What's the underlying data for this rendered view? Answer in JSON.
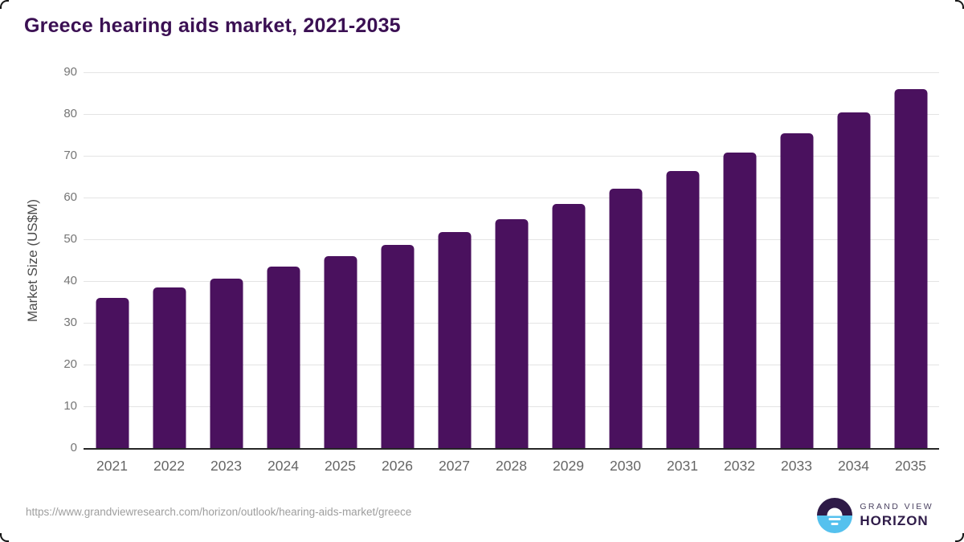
{
  "title": "Greece hearing aids market, 2021-2035",
  "chart_data": {
    "type": "bar",
    "title": "Greece hearing aids market, 2021-2035",
    "categories": [
      "2021",
      "2022",
      "2023",
      "2024",
      "2025",
      "2026",
      "2027",
      "2028",
      "2029",
      "2030",
      "2031",
      "2032",
      "2033",
      "2034",
      "2035"
    ],
    "values": [
      36.0,
      38.4,
      40.5,
      43.4,
      45.9,
      48.6,
      51.7,
      54.9,
      58.4,
      62.2,
      66.3,
      70.7,
      75.4,
      80.3,
      86.0
    ],
    "xlabel": "",
    "ylabel": "Market Size (US$M)",
    "ylim": [
      0,
      90
    ],
    "yticks": [
      0,
      10,
      20,
      30,
      40,
      50,
      60,
      70,
      80,
      90
    ],
    "grid": true,
    "legend": "none",
    "bar_color": "#4a115e"
  },
  "colors": {
    "title": "#3b1053",
    "bar": "#4a115e",
    "axis_line": "#262626",
    "gridline": "#e4e4e4",
    "tick_label": "#757575",
    "logo_dark_purple": "#2e1a47",
    "logo_light_blue": "#55c1ee"
  },
  "footer": {
    "source_url": "https://www.grandviewresearch.com/horizon/outlook/hearing-aids-market/greece",
    "logo": {
      "icon": "horizon-sun-icon",
      "line1": "GRAND VIEW",
      "line2": "HORIZON"
    }
  }
}
